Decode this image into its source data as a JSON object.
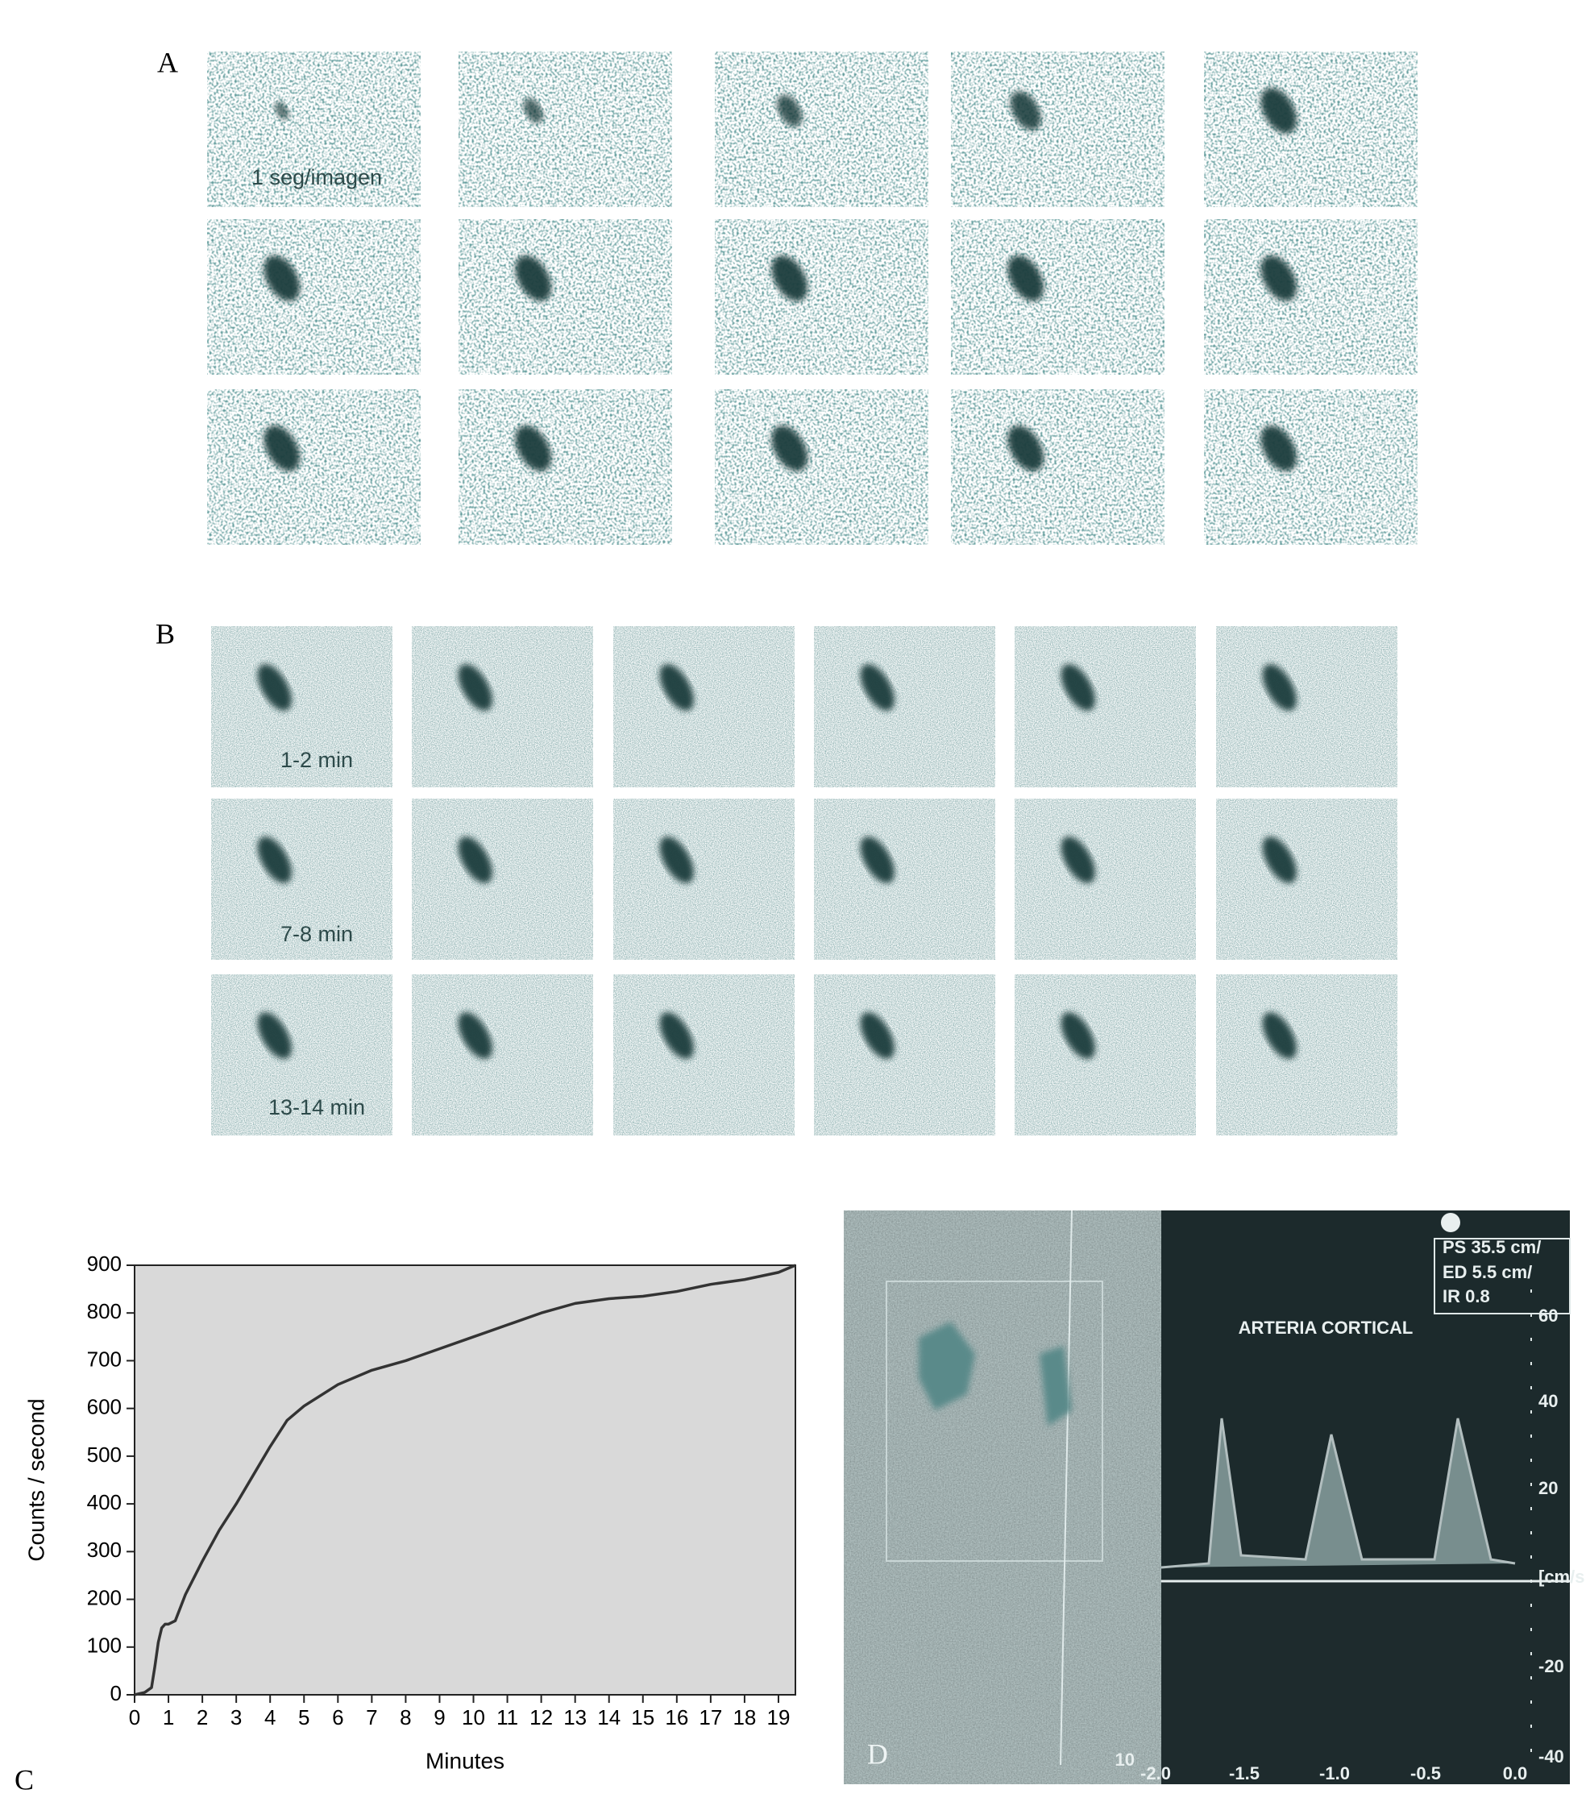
{
  "panels": {
    "A": {
      "label": "A",
      "note": "1 seg/imagen"
    },
    "B": {
      "label": "B",
      "notes": [
        "1-2 min",
        "7-8 min",
        "13-14 min"
      ]
    },
    "C": {
      "label": "C"
    },
    "D": {
      "label": "D",
      "title": "ARTERIA CORTICAL",
      "readouts": [
        "PS  35.5 cm/",
        "ED   5.5 cm/",
        "IR          0.8"
      ],
      "right_axis": [
        "60",
        "40",
        "20",
        "[cm/s",
        "-20",
        "-40"
      ],
      "bottom_axis": [
        "-2.0",
        "-1.5",
        "-1.0",
        "-0.5",
        "0.0"
      ],
      "depth": "10"
    }
  },
  "chart_data": {
    "type": "line",
    "xlabel": "Minutes",
    "ylabel": "Counts / second",
    "x": [
      0,
      0.3,
      0.5,
      0.6,
      0.7,
      0.8,
      0.9,
      1.0,
      1.2,
      1.5,
      2,
      2.5,
      3,
      3.5,
      4,
      4.5,
      5,
      6,
      7,
      8,
      9,
      10,
      11,
      12,
      13,
      14,
      15,
      16,
      17,
      18,
      19,
      19.5
    ],
    "series": [
      {
        "color": "#333333",
        "values": [
          0,
          5,
          15,
          60,
          110,
          140,
          148,
          148,
          155,
          210,
          280,
          345,
          400,
          460,
          520,
          575,
          605,
          650,
          680,
          700,
          725,
          750,
          775,
          800,
          820,
          830,
          835,
          845,
          860,
          870,
          885,
          900
        ]
      }
    ],
    "xlim": [
      0,
      19.5
    ],
    "xticks": [
      0,
      1,
      2,
      3,
      4,
      5,
      6,
      7,
      8,
      9,
      10,
      11,
      12,
      13,
      14,
      15,
      16,
      17,
      18,
      19
    ],
    "ylim": [
      0,
      900
    ],
    "yticks": [
      0,
      100,
      200,
      300,
      400,
      500,
      600,
      700,
      800,
      900
    ],
    "plot_background": "#d9d9d9"
  }
}
